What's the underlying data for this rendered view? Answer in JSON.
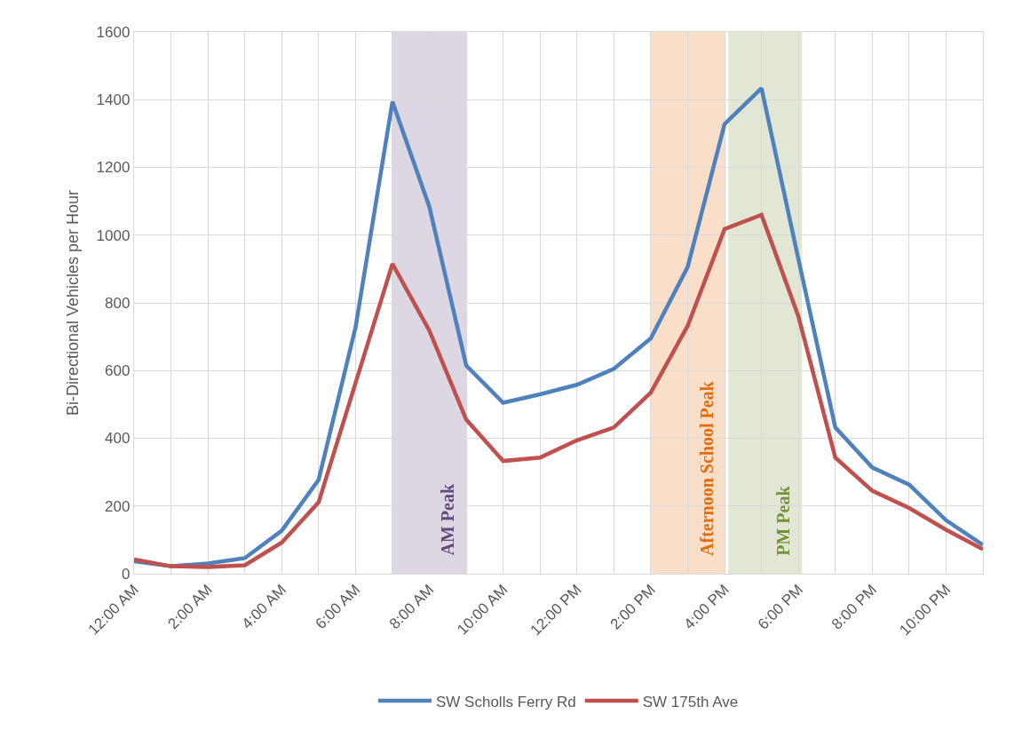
{
  "chart_data": {
    "type": "line",
    "x": [
      0,
      1,
      2,
      3,
      4,
      5,
      6,
      7,
      8,
      9,
      10,
      11,
      12,
      13,
      14,
      15,
      16,
      17,
      18,
      19,
      20,
      21,
      22,
      23
    ],
    "series": [
      {
        "name": "SW Scholls Ferry Rd",
        "color": "#4f81bd",
        "values": [
          37,
          22,
          30,
          46,
          127,
          277,
          727,
          1394,
          1084,
          615,
          505,
          530,
          558,
          605,
          695,
          906,
          1328,
          1434,
          929,
          432,
          314,
          263,
          158,
          85
        ]
      },
      {
        "name": "SW 175th Ave",
        "color": "#c0504d",
        "values": [
          42,
          22,
          20,
          25,
          92,
          211,
          563,
          915,
          718,
          455,
          333,
          343,
          394,
          432,
          535,
          732,
          1018,
          1060,
          760,
          343,
          245,
          194,
          130,
          72
        ]
      }
    ],
    "xlim": [
      0,
      23
    ],
    "xticks": [
      {
        "value": 0,
        "label": "12:00 AM"
      },
      {
        "value": 1,
        "label": null
      },
      {
        "value": 2,
        "label": "2:00 AM"
      },
      {
        "value": 3,
        "label": null
      },
      {
        "value": 4,
        "label": "4:00 AM"
      },
      {
        "value": 5,
        "label": null
      },
      {
        "value": 6,
        "label": "6:00 AM"
      },
      {
        "value": 7,
        "label": null
      },
      {
        "value": 8,
        "label": "8:00 AM"
      },
      {
        "value": 9,
        "label": null
      },
      {
        "value": 10,
        "label": "10:00 AM"
      },
      {
        "value": 11,
        "label": null
      },
      {
        "value": 12,
        "label": "12:00 PM"
      },
      {
        "value": 13,
        "label": null
      },
      {
        "value": 14,
        "label": "2:00 PM"
      },
      {
        "value": 15,
        "label": null
      },
      {
        "value": 16,
        "label": "4:00 PM"
      },
      {
        "value": 17,
        "label": null
      },
      {
        "value": 18,
        "label": "6:00 PM"
      },
      {
        "value": 19,
        "label": null
      },
      {
        "value": 20,
        "label": "8:00 PM"
      },
      {
        "value": 21,
        "label": null
      },
      {
        "value": 22,
        "label": "10:00 PM"
      },
      {
        "value": 23,
        "label": null
      }
    ],
    "ylim": [
      0,
      1600
    ],
    "yticks": [
      0,
      200,
      400,
      600,
      800,
      1000,
      1200,
      1400,
      1600
    ],
    "ylabel": "Bi-Directional Vehicles per Hour",
    "bands": [
      {
        "axis": "x",
        "from": 7,
        "to": 9,
        "label": "AM Peak",
        "color": "#604a7b"
      },
      {
        "axis": "x",
        "from": 14,
        "to": 16,
        "label": "Afternoon School Peak",
        "color": "#e46c0a"
      },
      {
        "axis": "x",
        "from": 16.1,
        "to": 18.1,
        "label": "PM Peak",
        "color": "#76923c"
      }
    ],
    "grid": true,
    "legend": "bottom",
    "marker": "none",
    "line_style": "solid"
  }
}
